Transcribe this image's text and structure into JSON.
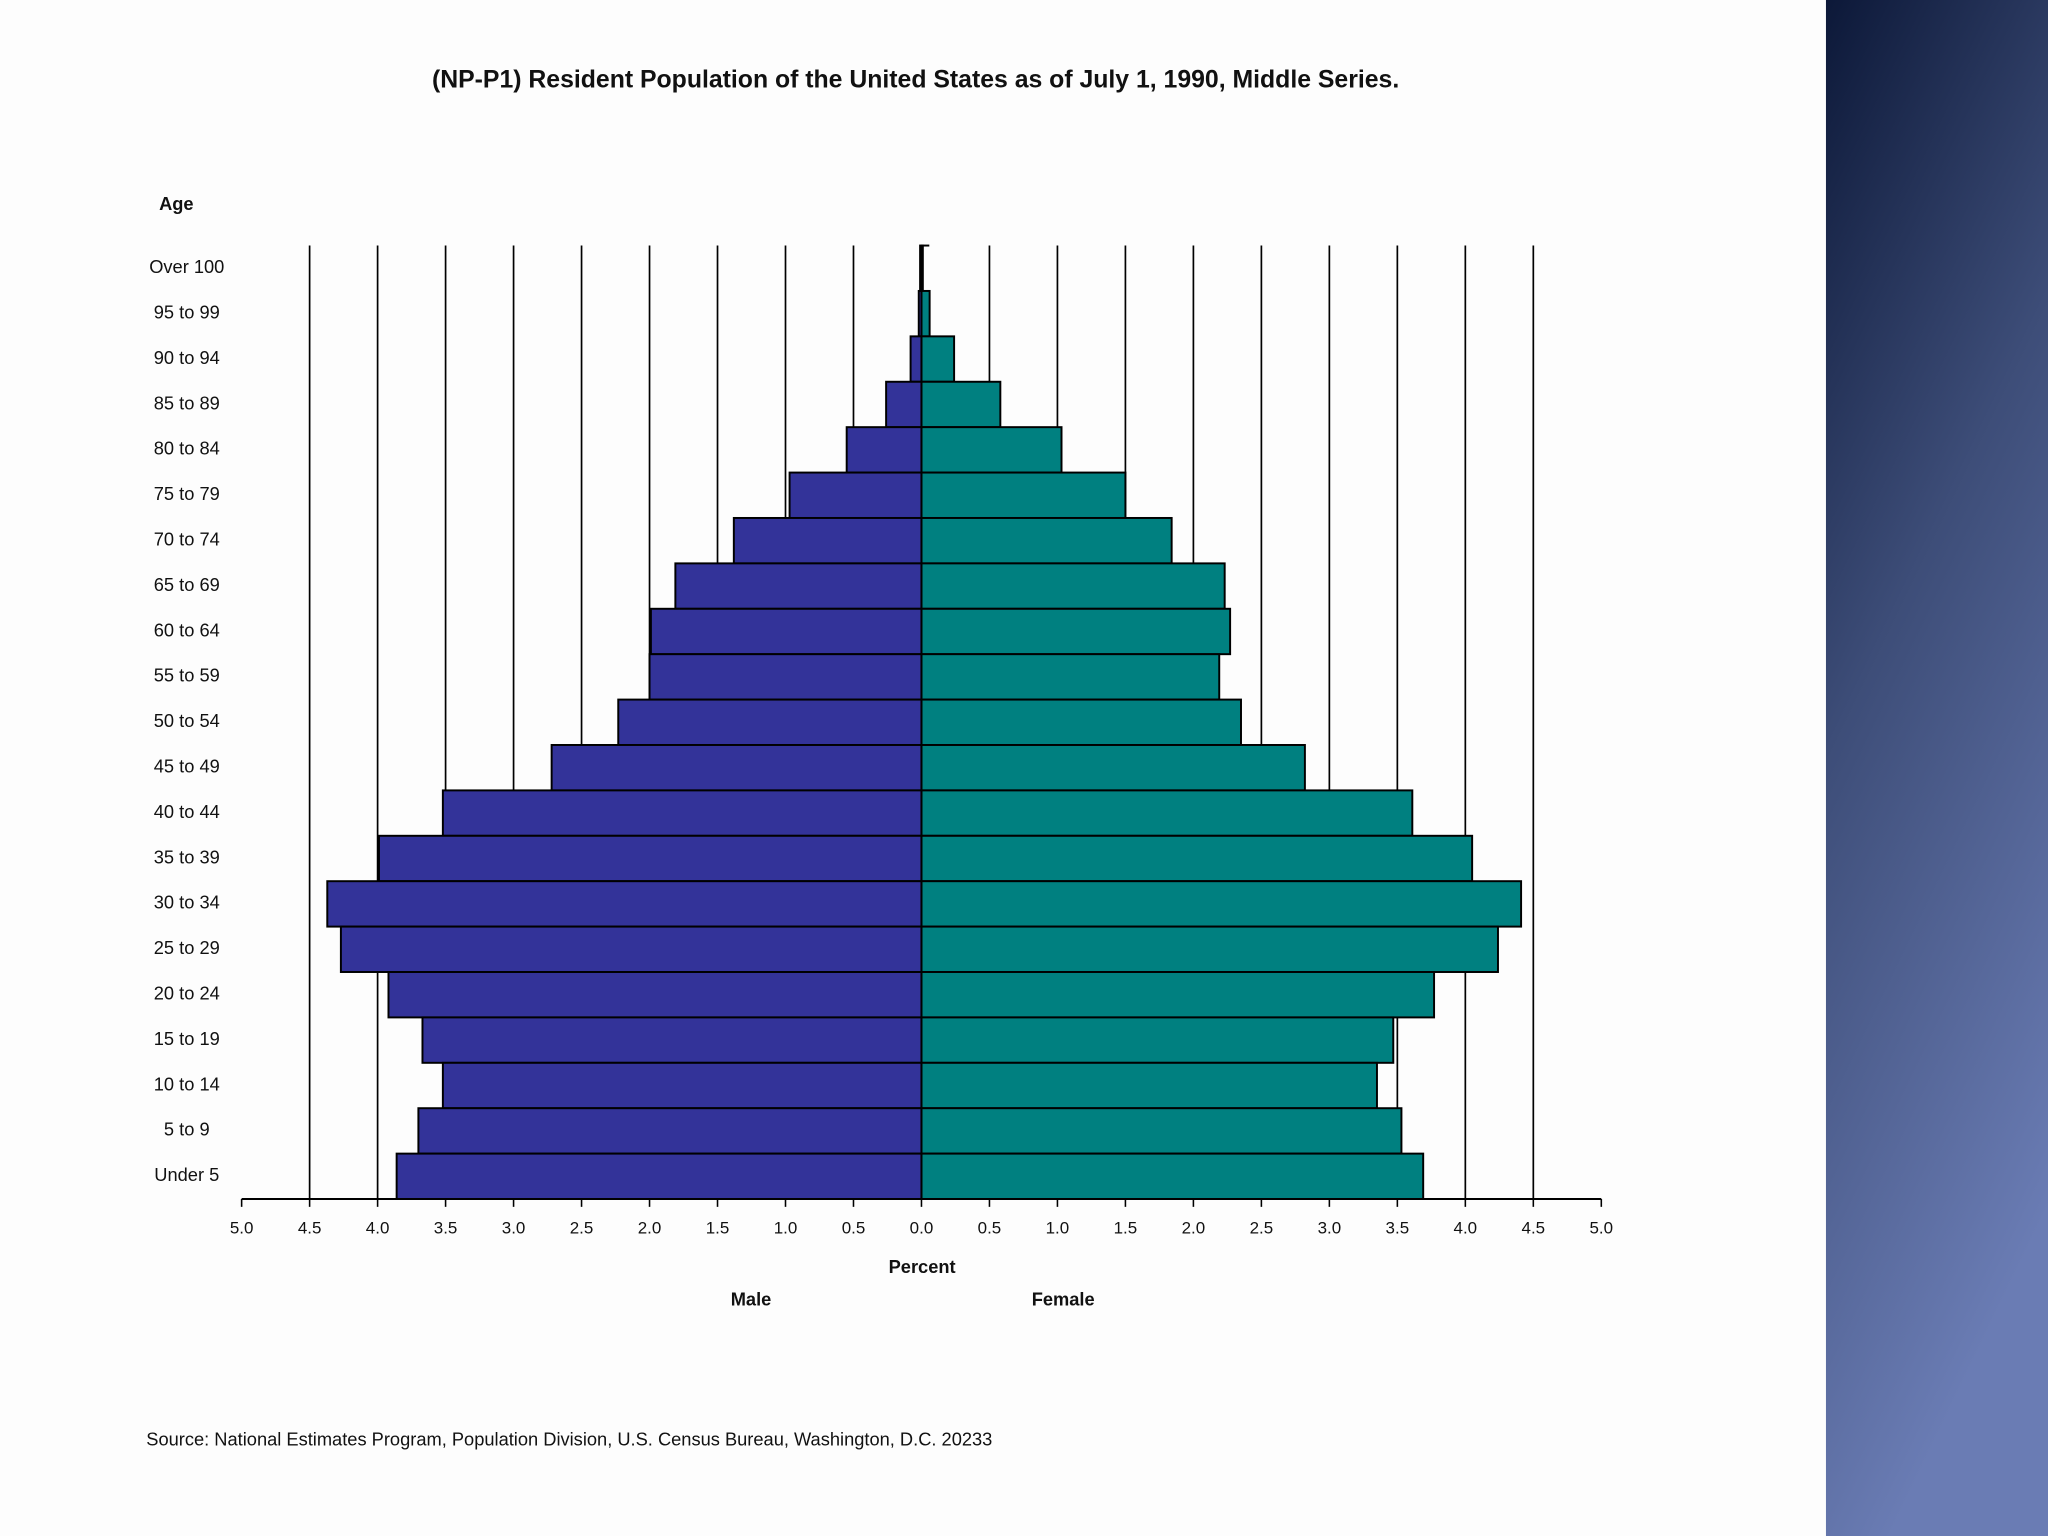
{
  "chart_data": {
    "type": "population-pyramid",
    "title": "(NP-P1)  Resident Population of the United States as of July 1, 1990, Middle Series.",
    "y_label": "Age",
    "x_label": "Percent",
    "source": "Source:  National Estimates Program, Population Division, U.S. Census Bureau, Washington, D.C. 20233",
    "categories": [
      "Over 100",
      "95 to 99",
      "90 to 94",
      "85 to 89",
      "80 to 84",
      "75 to 79",
      "70 to 74",
      "65 to 69",
      "60 to 64",
      "55 to 59",
      "50 to 54",
      "45 to 49",
      "40 to 44",
      "35 to 39",
      "30 to 34",
      "25 to 29",
      "20 to 24",
      "15 to 19",
      "10 to 14",
      "5 to 9",
      "Under 5"
    ],
    "series": [
      {
        "name": "Male",
        "color": "#333399",
        "side": "left",
        "values": [
          0.01,
          0.02,
          0.08,
          0.26,
          0.55,
          0.97,
          1.38,
          1.81,
          1.99,
          2.0,
          2.23,
          2.72,
          3.52,
          3.99,
          4.37,
          4.27,
          3.92,
          3.67,
          3.52,
          3.7,
          3.86
        ]
      },
      {
        "name": "Female",
        "color": "#008080",
        "side": "right",
        "values": [
          0.01,
          0.06,
          0.24,
          0.58,
          1.03,
          1.5,
          1.84,
          2.23,
          2.27,
          2.19,
          2.35,
          2.82,
          3.61,
          4.05,
          4.41,
          4.24,
          3.77,
          3.47,
          3.35,
          3.53,
          3.69
        ]
      }
    ],
    "xlim": [
      -5,
      5
    ],
    "xticks": [
      {
        "value": -5,
        "label": "5.0"
      },
      {
        "value": -4.5,
        "label": "4.5"
      },
      {
        "value": -4,
        "label": "4.0"
      },
      {
        "value": -3.5,
        "label": "3.5"
      },
      {
        "value": -3,
        "label": "3.0"
      },
      {
        "value": -2.5,
        "label": "2.5"
      },
      {
        "value": -2,
        "label": "2.0"
      },
      {
        "value": -1.5,
        "label": "1.5"
      },
      {
        "value": -1,
        "label": "1.0"
      },
      {
        "value": -0.5,
        "label": "0.5"
      },
      {
        "value": 0,
        "label": "0.0"
      },
      {
        "value": 0.5,
        "label": "0.5"
      },
      {
        "value": 1,
        "label": "1.0"
      },
      {
        "value": 1.5,
        "label": "1.5"
      },
      {
        "value": 2,
        "label": "2.0"
      },
      {
        "value": 2.5,
        "label": "2.5"
      },
      {
        "value": 3,
        "label": "3.0"
      },
      {
        "value": 3.5,
        "label": "3.5"
      },
      {
        "value": 4,
        "label": "4.0"
      },
      {
        "value": 4.5,
        "label": "4.5"
      },
      {
        "value": 5,
        "label": "5.0"
      }
    ],
    "grid": true
  }
}
